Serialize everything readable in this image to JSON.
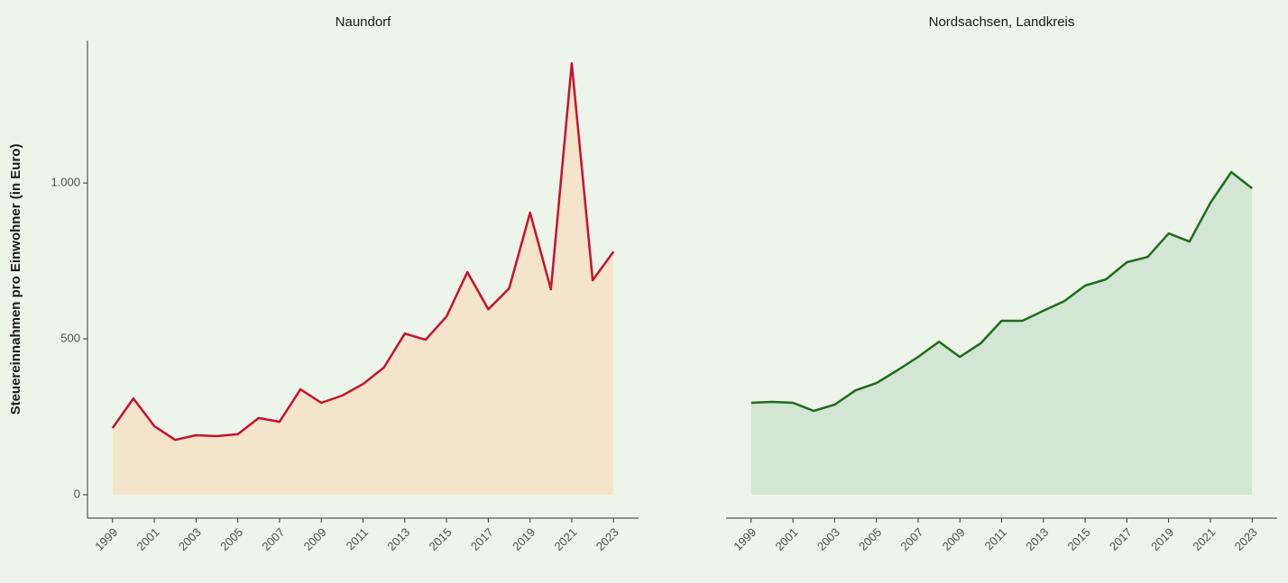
{
  "chart_data": [
    {
      "type": "area",
      "title": "Naundorf",
      "ylabel": "Steuereinnahmen pro Einwohner (in Euro)",
      "x": [
        1999,
        2000,
        2001,
        2002,
        2003,
        2004,
        2005,
        2006,
        2007,
        2008,
        2009,
        2010,
        2011,
        2012,
        2013,
        2014,
        2015,
        2016,
        2017,
        2018,
        2019,
        2020,
        2021,
        2022,
        2023
      ],
      "values": [
        214,
        309,
        220,
        176,
        191,
        188,
        194,
        246,
        234,
        338,
        295,
        318,
        355,
        408,
        517,
        497,
        572,
        714,
        595,
        662,
        905,
        659,
        1384,
        688,
        780
      ],
      "color": "#c8102e",
      "fill": "#f5e4cc",
      "xlim": [
        1997.8,
        2024.2
      ],
      "xticks": [
        1999,
        2001,
        2003,
        2005,
        2007,
        2009,
        2011,
        2013,
        2015,
        2017,
        2019,
        2021,
        2023
      ],
      "ylim": [
        -75,
        1457
      ],
      "yticks": [
        0,
        500,
        {
          "value": 1000,
          "label": "1.000"
        }
      ]
    },
    {
      "type": "area",
      "title": "Nordsachsen, Landkreis",
      "x": [
        1999,
        2000,
        2001,
        2002,
        2003,
        2004,
        2005,
        2006,
        2007,
        2008,
        2009,
        2010,
        2011,
        2012,
        2013,
        2014,
        2015,
        2016,
        2017,
        2018,
        2019,
        2020,
        2021,
        2022,
        2023
      ],
      "values": [
        295,
        298,
        295,
        269,
        289,
        335,
        358,
        399,
        442,
        491,
        442,
        486,
        558,
        558,
        590,
        621,
        671,
        691,
        746,
        763,
        838,
        812,
        936,
        1035,
        983
      ],
      "color": "#1e6b1e",
      "fill": "#d3e5d3",
      "xlim": [
        1997.8,
        2024.2
      ],
      "xticks": [
        1999,
        2001,
        2003,
        2005,
        2007,
        2009,
        2011,
        2013,
        2015,
        2017,
        2019,
        2021,
        2023
      ],
      "ylim": [
        -75,
        1457
      ]
    }
  ]
}
